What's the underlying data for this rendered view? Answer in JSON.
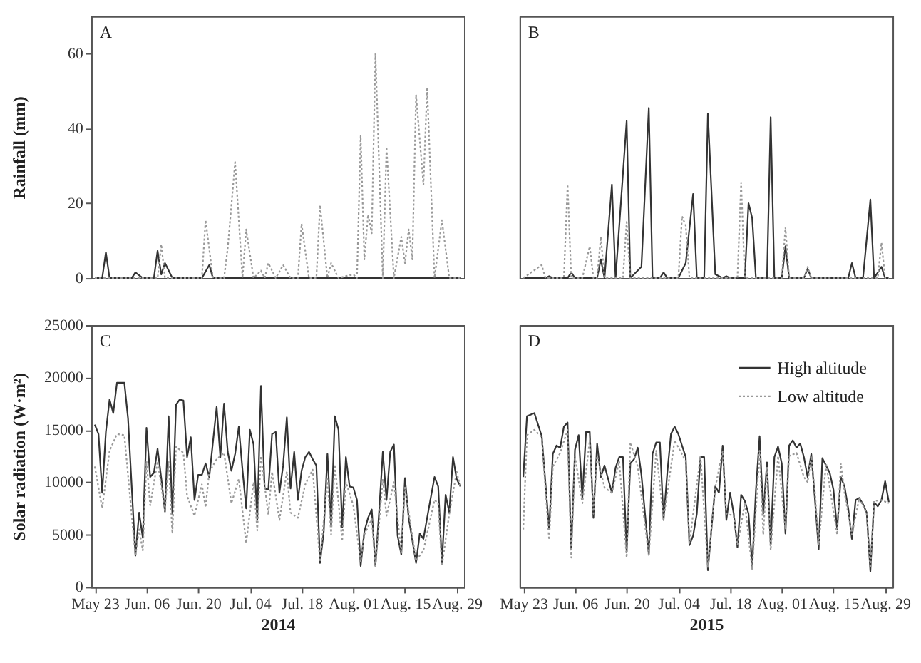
{
  "chart_data": [
    {
      "type": "line",
      "ylabel": "Rainfall (mm)",
      "annotations": [
        "A"
      ],
      "xlim": [
        "2014-05-22",
        "2014-08-31"
      ],
      "ylim": [
        0,
        70
      ],
      "yticks": [
        0,
        20,
        40,
        60
      ],
      "tick_labels": "y",
      "grid": false,
      "legend": false,
      "series": [
        {
          "color": "#333333",
          "line_style": "solid",
          "x": [
            "2014-05-23",
            "2014-05-25",
            "2014-05-26",
            "2014-05-27",
            "2014-06-02",
            "2014-06-03",
            "2014-06-05",
            "2014-06-08",
            "2014-06-09",
            "2014-06-10",
            "2014-06-11",
            "2014-06-13",
            "2014-06-21",
            "2014-06-23",
            "2014-06-24",
            "2014-08-30"
          ],
          "values": [
            0,
            0,
            6.9,
            0,
            0,
            1.5,
            0,
            0,
            7.3,
            1,
            4,
            0,
            0,
            3.5,
            0,
            0
          ]
        },
        {
          "color": "#999999",
          "line_style": "dotted",
          "x": [
            "2014-05-23",
            "2014-06-09",
            "2014-06-10",
            "2014-06-11",
            "2014-06-21",
            "2014-06-22",
            "2014-06-24",
            "2014-06-27",
            "2014-06-28",
            "2014-06-30",
            "2014-07-02",
            "2014-07-03",
            "2014-07-05",
            "2014-07-07",
            "2014-07-08",
            "2014-07-09",
            "2014-07-11",
            "2014-07-13",
            "2014-07-15",
            "2014-07-17",
            "2014-07-18",
            "2014-07-20",
            "2014-07-22",
            "2014-07-23",
            "2014-07-25",
            "2014-07-26",
            "2014-07-28",
            "2014-08-01",
            "2014-08-02",
            "2014-08-03",
            "2014-08-04",
            "2014-08-05",
            "2014-08-06",
            "2014-08-07",
            "2014-08-09",
            "2014-08-10",
            "2014-08-12",
            "2014-08-14",
            "2014-08-15",
            "2014-08-16",
            "2014-08-17",
            "2014-08-18",
            "2014-08-20",
            "2014-08-21",
            "2014-08-23",
            "2014-08-25",
            "2014-08-27",
            "2014-08-30"
          ],
          "values": [
            0,
            0,
            9,
            0,
            0,
            15.5,
            0,
            0,
            8,
            31,
            0,
            13,
            0,
            2,
            0,
            4,
            0,
            3.5,
            0,
            0,
            14.5,
            0,
            0,
            19.5,
            0,
            4,
            0,
            1,
            0,
            38,
            5,
            17,
            12,
            60,
            0,
            35,
            0,
            11,
            4,
            13,
            5,
            49,
            25,
            51,
            0,
            15.5,
            0,
            0
          ]
        }
      ]
    },
    {
      "type": "line",
      "annotations": [
        "B"
      ],
      "xlim": [
        "2015-05-22",
        "2015-08-31"
      ],
      "ylim": [
        0,
        70
      ],
      "tick_labels": false,
      "grid": false,
      "legend": false,
      "series": [
        {
          "color": "#333333",
          "line_style": "solid",
          "x": [
            "2015-05-23",
            "2015-05-29",
            "2015-05-30",
            "2015-05-31",
            "2015-06-04",
            "2015-06-05",
            "2015-06-06",
            "2015-06-12",
            "2015-06-13",
            "2015-06-14",
            "2015-06-16",
            "2015-06-17",
            "2015-06-20",
            "2015-06-21",
            "2015-06-24",
            "2015-06-26",
            "2015-06-27",
            "2015-06-29",
            "2015-06-30",
            "2015-07-01",
            "2015-07-04",
            "2015-07-06",
            "2015-07-08",
            "2015-07-09",
            "2015-07-11",
            "2015-07-12",
            "2015-07-14",
            "2015-07-16",
            "2015-07-17",
            "2015-07-18",
            "2015-07-22",
            "2015-07-23",
            "2015-07-24",
            "2015-07-25",
            "2015-07-28",
            "2015-07-29",
            "2015-07-30",
            "2015-08-01",
            "2015-08-02",
            "2015-08-03",
            "2015-08-07",
            "2015-08-08",
            "2015-08-09",
            "2015-08-19",
            "2015-08-20",
            "2015-08-21",
            "2015-08-23",
            "2015-08-25",
            "2015-08-26",
            "2015-08-28",
            "2015-08-29",
            "2015-08-30"
          ],
          "values": [
            0,
            0,
            0.5,
            0,
            0,
            1.5,
            0,
            0,
            5,
            0,
            25,
            0,
            42,
            0,
            3,
            45.5,
            0,
            0,
            1.5,
            0,
            0,
            4,
            22.5,
            0,
            0,
            44,
            1,
            0,
            0.5,
            0,
            0,
            20,
            16,
            0,
            0,
            43,
            0,
            0,
            8.5,
            0,
            0,
            2.5,
            0,
            0,
            4,
            0,
            0,
            21,
            0,
            3,
            0,
            0
          ]
        },
        {
          "color": "#999999",
          "line_style": "dotted",
          "x": [
            "2015-05-23",
            "2015-05-28",
            "2015-05-29",
            "2015-06-03",
            "2015-06-04",
            "2015-06-05",
            "2015-06-08",
            "2015-06-10",
            "2015-06-11",
            "2015-06-12",
            "2015-06-13",
            "2015-06-14",
            "2015-06-19",
            "2015-06-20",
            "2015-06-21",
            "2015-07-04",
            "2015-07-05",
            "2015-07-06",
            "2015-07-07",
            "2015-07-20",
            "2015-07-21",
            "2015-07-22",
            "2015-08-01",
            "2015-08-02",
            "2015-08-03",
            "2015-08-07",
            "2015-08-08",
            "2015-08-09",
            "2015-08-27",
            "2015-08-28",
            "2015-08-29",
            "2015-08-30"
          ],
          "values": [
            0,
            3.5,
            0,
            0,
            25,
            0,
            0,
            8.5,
            0,
            0,
            11,
            0,
            0,
            15,
            0,
            0,
            16.5,
            14,
            0,
            0,
            25.5,
            0,
            0,
            13.5,
            0,
            0,
            3,
            0,
            0,
            9.5,
            0,
            0
          ]
        }
      ]
    },
    {
      "type": "line",
      "ylabel": "Solar radiation (W·m²)",
      "xlabel": "2014",
      "annotations": [
        "C"
      ],
      "xlim": [
        "2014-05-22",
        "2014-08-31"
      ],
      "xticks": [
        {
          "value": "2014-05-23",
          "label": "May 23"
        },
        {
          "value": "2014-06-06",
          "label": "Jun. 06"
        },
        {
          "value": "2014-06-20",
          "label": "Jun. 20"
        },
        {
          "value": "2014-07-04",
          "label": "Jul. 04"
        },
        {
          "value": "2014-07-18",
          "label": "Jul. 18"
        },
        {
          "value": "2014-08-01",
          "label": "Aug. 01"
        },
        {
          "value": "2014-08-15",
          "label": "Aug. 15"
        },
        {
          "value": "2014-08-29",
          "label": "Aug. 29"
        }
      ],
      "ylim": [
        0,
        25000
      ],
      "yticks": [
        0,
        5000,
        10000,
        15000,
        20000,
        25000
      ],
      "grid": false,
      "legend": false,
      "series": [
        {
          "color": "#333333",
          "line_style": "solid",
          "x": [
            "2014-05-23",
            "2014-05-24",
            "2014-05-25",
            "2014-05-26",
            "2014-05-27",
            "2014-05-28",
            "2014-05-29",
            "2014-05-31",
            "2014-06-01",
            "2014-06-03",
            "2014-06-04",
            "2014-06-05",
            "2014-06-06",
            "2014-06-07",
            "2014-06-08",
            "2014-06-09",
            "2014-06-10",
            "2014-06-11",
            "2014-06-12",
            "2014-06-13",
            "2014-06-14",
            "2014-06-15",
            "2014-06-16",
            "2014-06-17",
            "2014-06-18",
            "2014-06-19",
            "2014-06-20",
            "2014-06-21",
            "2014-06-22",
            "2014-06-23",
            "2014-06-25",
            "2014-06-26",
            "2014-06-27",
            "2014-06-28",
            "2014-06-29",
            "2014-06-30",
            "2014-07-01",
            "2014-07-02",
            "2014-07-03",
            "2014-07-04",
            "2014-07-05",
            "2014-07-06",
            "2014-07-07",
            "2014-07-08",
            "2014-07-09",
            "2014-07-10",
            "2014-07-11",
            "2014-07-12",
            "2014-07-13",
            "2014-07-14",
            "2014-07-15",
            "2014-07-16",
            "2014-07-17",
            "2014-07-18",
            "2014-07-19",
            "2014-07-20",
            "2014-07-21",
            "2014-07-22",
            "2014-07-23",
            "2014-07-24",
            "2014-07-25",
            "2014-07-26",
            "2014-07-27",
            "2014-07-28",
            "2014-07-29",
            "2014-07-30",
            "2014-07-31",
            "2014-08-01",
            "2014-08-02",
            "2014-08-03",
            "2014-08-04",
            "2014-08-05",
            "2014-08-06",
            "2014-08-07",
            "2014-08-08",
            "2014-08-09",
            "2014-08-10",
            "2014-08-11",
            "2014-08-12",
            "2014-08-13",
            "2014-08-14",
            "2014-08-15",
            "2014-08-16",
            "2014-08-18",
            "2014-08-19",
            "2014-08-20",
            "2014-08-21",
            "2014-08-23",
            "2014-08-24",
            "2014-08-25",
            "2014-08-26",
            "2014-08-27",
            "2014-08-28",
            "2014-08-29",
            "2014-08-30"
          ],
          "values": [
            15500,
            14600,
            9000,
            14800,
            17900,
            16600,
            19500,
            19500,
            16100,
            3000,
            7100,
            4700,
            15200,
            10500,
            10900,
            13200,
            10400,
            7200,
            16300,
            7000,
            17400,
            17900,
            17800,
            12400,
            14300,
            8300,
            10700,
            10700,
            11800,
            10500,
            17200,
            12400,
            17500,
            12900,
            11100,
            12700,
            15300,
            11200,
            7500,
            15000,
            13600,
            6400,
            19200,
            9400,
            9300,
            14600,
            14800,
            9000,
            11600,
            16200,
            9400,
            12900,
            8300,
            11100,
            12400,
            12900,
            12200,
            11600,
            2300,
            5300,
            12700,
            5900,
            16300,
            15000,
            5700,
            12400,
            9600,
            9500,
            8300,
            2000,
            5300,
            6600,
            7400,
            2000,
            7200,
            12900,
            8300,
            12900,
            13600,
            4900,
            3100,
            10400,
            6600,
            2300,
            5100,
            4600,
            6600,
            10500,
            9600,
            2300,
            8800,
            7100,
            12400,
            10300,
            9600
          ]
        },
        {
          "color": "#999999",
          "line_style": "dotted",
          "x": [
            "2014-05-23",
            "2014-05-25",
            "2014-05-27",
            "2014-05-29",
            "2014-05-31",
            "2014-06-03",
            "2014-06-04",
            "2014-06-05",
            "2014-06-06",
            "2014-06-07",
            "2014-06-09",
            "2014-06-11",
            "2014-06-12",
            "2014-06-13",
            "2014-06-14",
            "2014-06-16",
            "2014-06-17",
            "2014-06-19",
            "2014-06-21",
            "2014-06-22",
            "2014-06-23",
            "2014-06-25",
            "2014-06-27",
            "2014-06-29",
            "2014-07-01",
            "2014-07-03",
            "2014-07-05",
            "2014-07-06",
            "2014-07-07",
            "2014-07-09",
            "2014-07-10",
            "2014-07-12",
            "2014-07-14",
            "2014-07-15",
            "2014-07-17",
            "2014-07-19",
            "2014-07-21",
            "2014-07-23",
            "2014-07-25",
            "2014-07-26",
            "2014-07-27",
            "2014-07-29",
            "2014-07-30",
            "2014-08-01",
            "2014-08-03",
            "2014-08-04",
            "2014-08-06",
            "2014-08-07",
            "2014-08-09",
            "2014-08-10",
            "2014-08-12",
            "2014-08-14",
            "2014-08-15",
            "2014-08-18",
            "2014-08-20",
            "2014-08-23",
            "2014-08-24",
            "2014-08-25",
            "2014-08-27",
            "2014-08-29",
            "2014-08-30"
          ],
          "values": [
            11500,
            7500,
            13000,
            14600,
            14500,
            3000,
            5500,
            3500,
            12000,
            7800,
            12000,
            7300,
            12000,
            5100,
            13400,
            12800,
            8700,
            6800,
            9800,
            7600,
            11000,
            12200,
            12800,
            8000,
            10300,
            4200,
            10000,
            5400,
            12500,
            6900,
            11000,
            6400,
            11000,
            7100,
            6600,
            9800,
            11200,
            2400,
            10300,
            5000,
            11700,
            4400,
            10000,
            7800,
            2400,
            5000,
            6500,
            2000,
            10300,
            6800,
            10000,
            3200,
            9500,
            2500,
            3500,
            8300,
            8000,
            2000,
            7000,
            11000,
            9500
          ]
        }
      ]
    },
    {
      "type": "line",
      "xlabel": "2015",
      "annotations": [
        "D"
      ],
      "xlim": [
        "2015-05-22",
        "2015-08-31"
      ],
      "xticks": [
        {
          "value": "2015-05-23",
          "label": "May 23"
        },
        {
          "value": "2015-06-06",
          "label": "Jun. 06"
        },
        {
          "value": "2015-06-20",
          "label": "Jun. 20"
        },
        {
          "value": "2015-07-04",
          "label": "Jul. 04"
        },
        {
          "value": "2015-07-18",
          "label": "Jul. 18"
        },
        {
          "value": "2015-08-01",
          "label": "Aug. 01"
        },
        {
          "value": "2015-08-15",
          "label": "Aug. 15"
        },
        {
          "value": "2015-08-29",
          "label": "Aug. 29"
        }
      ],
      "ylim": [
        0,
        25000
      ],
      "tick_labels": "x",
      "grid": false,
      "legend": "top right",
      "series": [
        {
          "name": "High altitude",
          "color": "#333333",
          "line_style": "solid",
          "x": [
            "2015-05-23",
            "2015-05-24",
            "2015-05-26",
            "2015-05-28",
            "2015-05-30",
            "2015-05-31",
            "2015-06-01",
            "2015-06-02",
            "2015-06-03",
            "2015-06-04",
            "2015-06-05",
            "2015-06-06",
            "2015-06-07",
            "2015-06-08",
            "2015-06-09",
            "2015-06-10",
            "2015-06-11",
            "2015-06-12",
            "2015-06-13",
            "2015-06-14",
            "2015-06-15",
            "2015-06-16",
            "2015-06-17",
            "2015-06-18",
            "2015-06-19",
            "2015-06-20",
            "2015-06-21",
            "2015-06-22",
            "2015-06-23",
            "2015-06-24",
            "2015-06-26",
            "2015-06-27",
            "2015-06-28",
            "2015-06-29",
            "2015-06-30",
            "2015-07-01",
            "2015-07-02",
            "2015-07-03",
            "2015-07-04",
            "2015-07-05",
            "2015-07-06",
            "2015-07-07",
            "2015-07-08",
            "2015-07-09",
            "2015-07-10",
            "2015-07-11",
            "2015-07-12",
            "2015-07-13",
            "2015-07-14",
            "2015-07-15",
            "2015-07-16",
            "2015-07-17",
            "2015-07-18",
            "2015-07-19",
            "2015-07-20",
            "2015-07-21",
            "2015-07-22",
            "2015-07-23",
            "2015-07-24",
            "2015-07-25",
            "2015-07-26",
            "2015-07-27",
            "2015-07-28",
            "2015-07-29",
            "2015-07-30",
            "2015-07-31",
            "2015-08-01",
            "2015-08-02",
            "2015-08-03",
            "2015-08-04",
            "2015-08-05",
            "2015-08-06",
            "2015-08-07",
            "2015-08-08",
            "2015-08-09",
            "2015-08-10",
            "2015-08-11",
            "2015-08-12",
            "2015-08-14",
            "2015-08-15",
            "2015-08-16",
            "2015-08-17",
            "2015-08-18",
            "2015-08-19",
            "2015-08-20",
            "2015-08-21",
            "2015-08-22",
            "2015-08-23",
            "2015-08-24",
            "2015-08-25",
            "2015-08-26",
            "2015-08-27",
            "2015-08-28",
            "2015-08-29",
            "2015-08-30"
          ],
          "values": [
            10500,
            16300,
            16600,
            14400,
            5500,
            12700,
            13500,
            13300,
            15300,
            15700,
            3600,
            13100,
            14500,
            8500,
            14800,
            14800,
            6600,
            13700,
            10500,
            11600,
            10300,
            9000,
            11400,
            12400,
            12400,
            3300,
            11800,
            12200,
            13300,
            10700,
            3100,
            12700,
            13800,
            13800,
            6400,
            10900,
            14600,
            15300,
            14600,
            13500,
            12400,
            4000,
            4900,
            7000,
            12400,
            12400,
            1600,
            5700,
            9600,
            9000,
            13500,
            6400,
            9000,
            7000,
            3800,
            8800,
            8200,
            7000,
            2000,
            9200,
            14400,
            7000,
            11900,
            4000,
            12400,
            13400,
            11800,
            5100,
            13500,
            14000,
            13300,
            13700,
            12400,
            10500,
            12700,
            8300,
            3600,
            12300,
            10900,
            9300,
            5500,
            10500,
            9600,
            7500,
            4600,
            8300,
            8500,
            7900,
            7100,
            1500,
            8100,
            7700,
            8300,
            10100,
            8100
          ]
        },
        {
          "name": "Low altitude",
          "color": "#999999",
          "line_style": "dotted",
          "x": [
            "2015-05-23",
            "2015-05-24",
            "2015-05-26",
            "2015-05-28",
            "2015-05-30",
            "2015-05-31",
            "2015-06-02",
            "2015-06-04",
            "2015-06-05",
            "2015-06-06",
            "2015-06-08",
            "2015-06-10",
            "2015-06-11",
            "2015-06-12",
            "2015-06-14",
            "2015-06-16",
            "2015-06-18",
            "2015-06-20",
            "2015-06-21",
            "2015-06-23",
            "2015-06-26",
            "2015-06-28",
            "2015-06-30",
            "2015-07-03",
            "2015-07-06",
            "2015-07-07",
            "2015-07-10",
            "2015-07-12",
            "2015-07-14",
            "2015-07-16",
            "2015-07-17",
            "2015-07-19",
            "2015-07-20",
            "2015-07-22",
            "2015-07-24",
            "2015-07-26",
            "2015-07-27",
            "2015-07-28",
            "2015-07-29",
            "2015-07-31",
            "2015-08-02",
            "2015-08-03",
            "2015-08-05",
            "2015-08-07",
            "2015-08-08",
            "2015-08-09",
            "2015-08-10",
            "2015-08-11",
            "2015-08-13",
            "2015-08-16",
            "2015-08-17",
            "2015-08-18",
            "2015-08-20",
            "2015-08-22",
            "2015-08-24",
            "2015-08-25",
            "2015-08-26",
            "2015-08-28",
            "2015-08-30"
          ],
          "values": [
            5500,
            14500,
            15000,
            14300,
            4500,
            11500,
            12800,
            15000,
            2800,
            12500,
            8000,
            14000,
            7000,
            12500,
            9500,
            9000,
            12000,
            2800,
            13800,
            11500,
            3000,
            13000,
            6500,
            14000,
            12000,
            4200,
            12500,
            1900,
            9500,
            13000,
            7000,
            6800,
            4000,
            8000,
            1700,
            13000,
            5000,
            11500,
            3500,
            12500,
            5500,
            12500,
            12800,
            10500,
            10000,
            12500,
            9000,
            4000,
            11800,
            5000,
            11800,
            9000,
            5000,
            8500,
            7000,
            1800,
            8200,
            8300,
            8000
          ]
        }
      ]
    }
  ]
}
